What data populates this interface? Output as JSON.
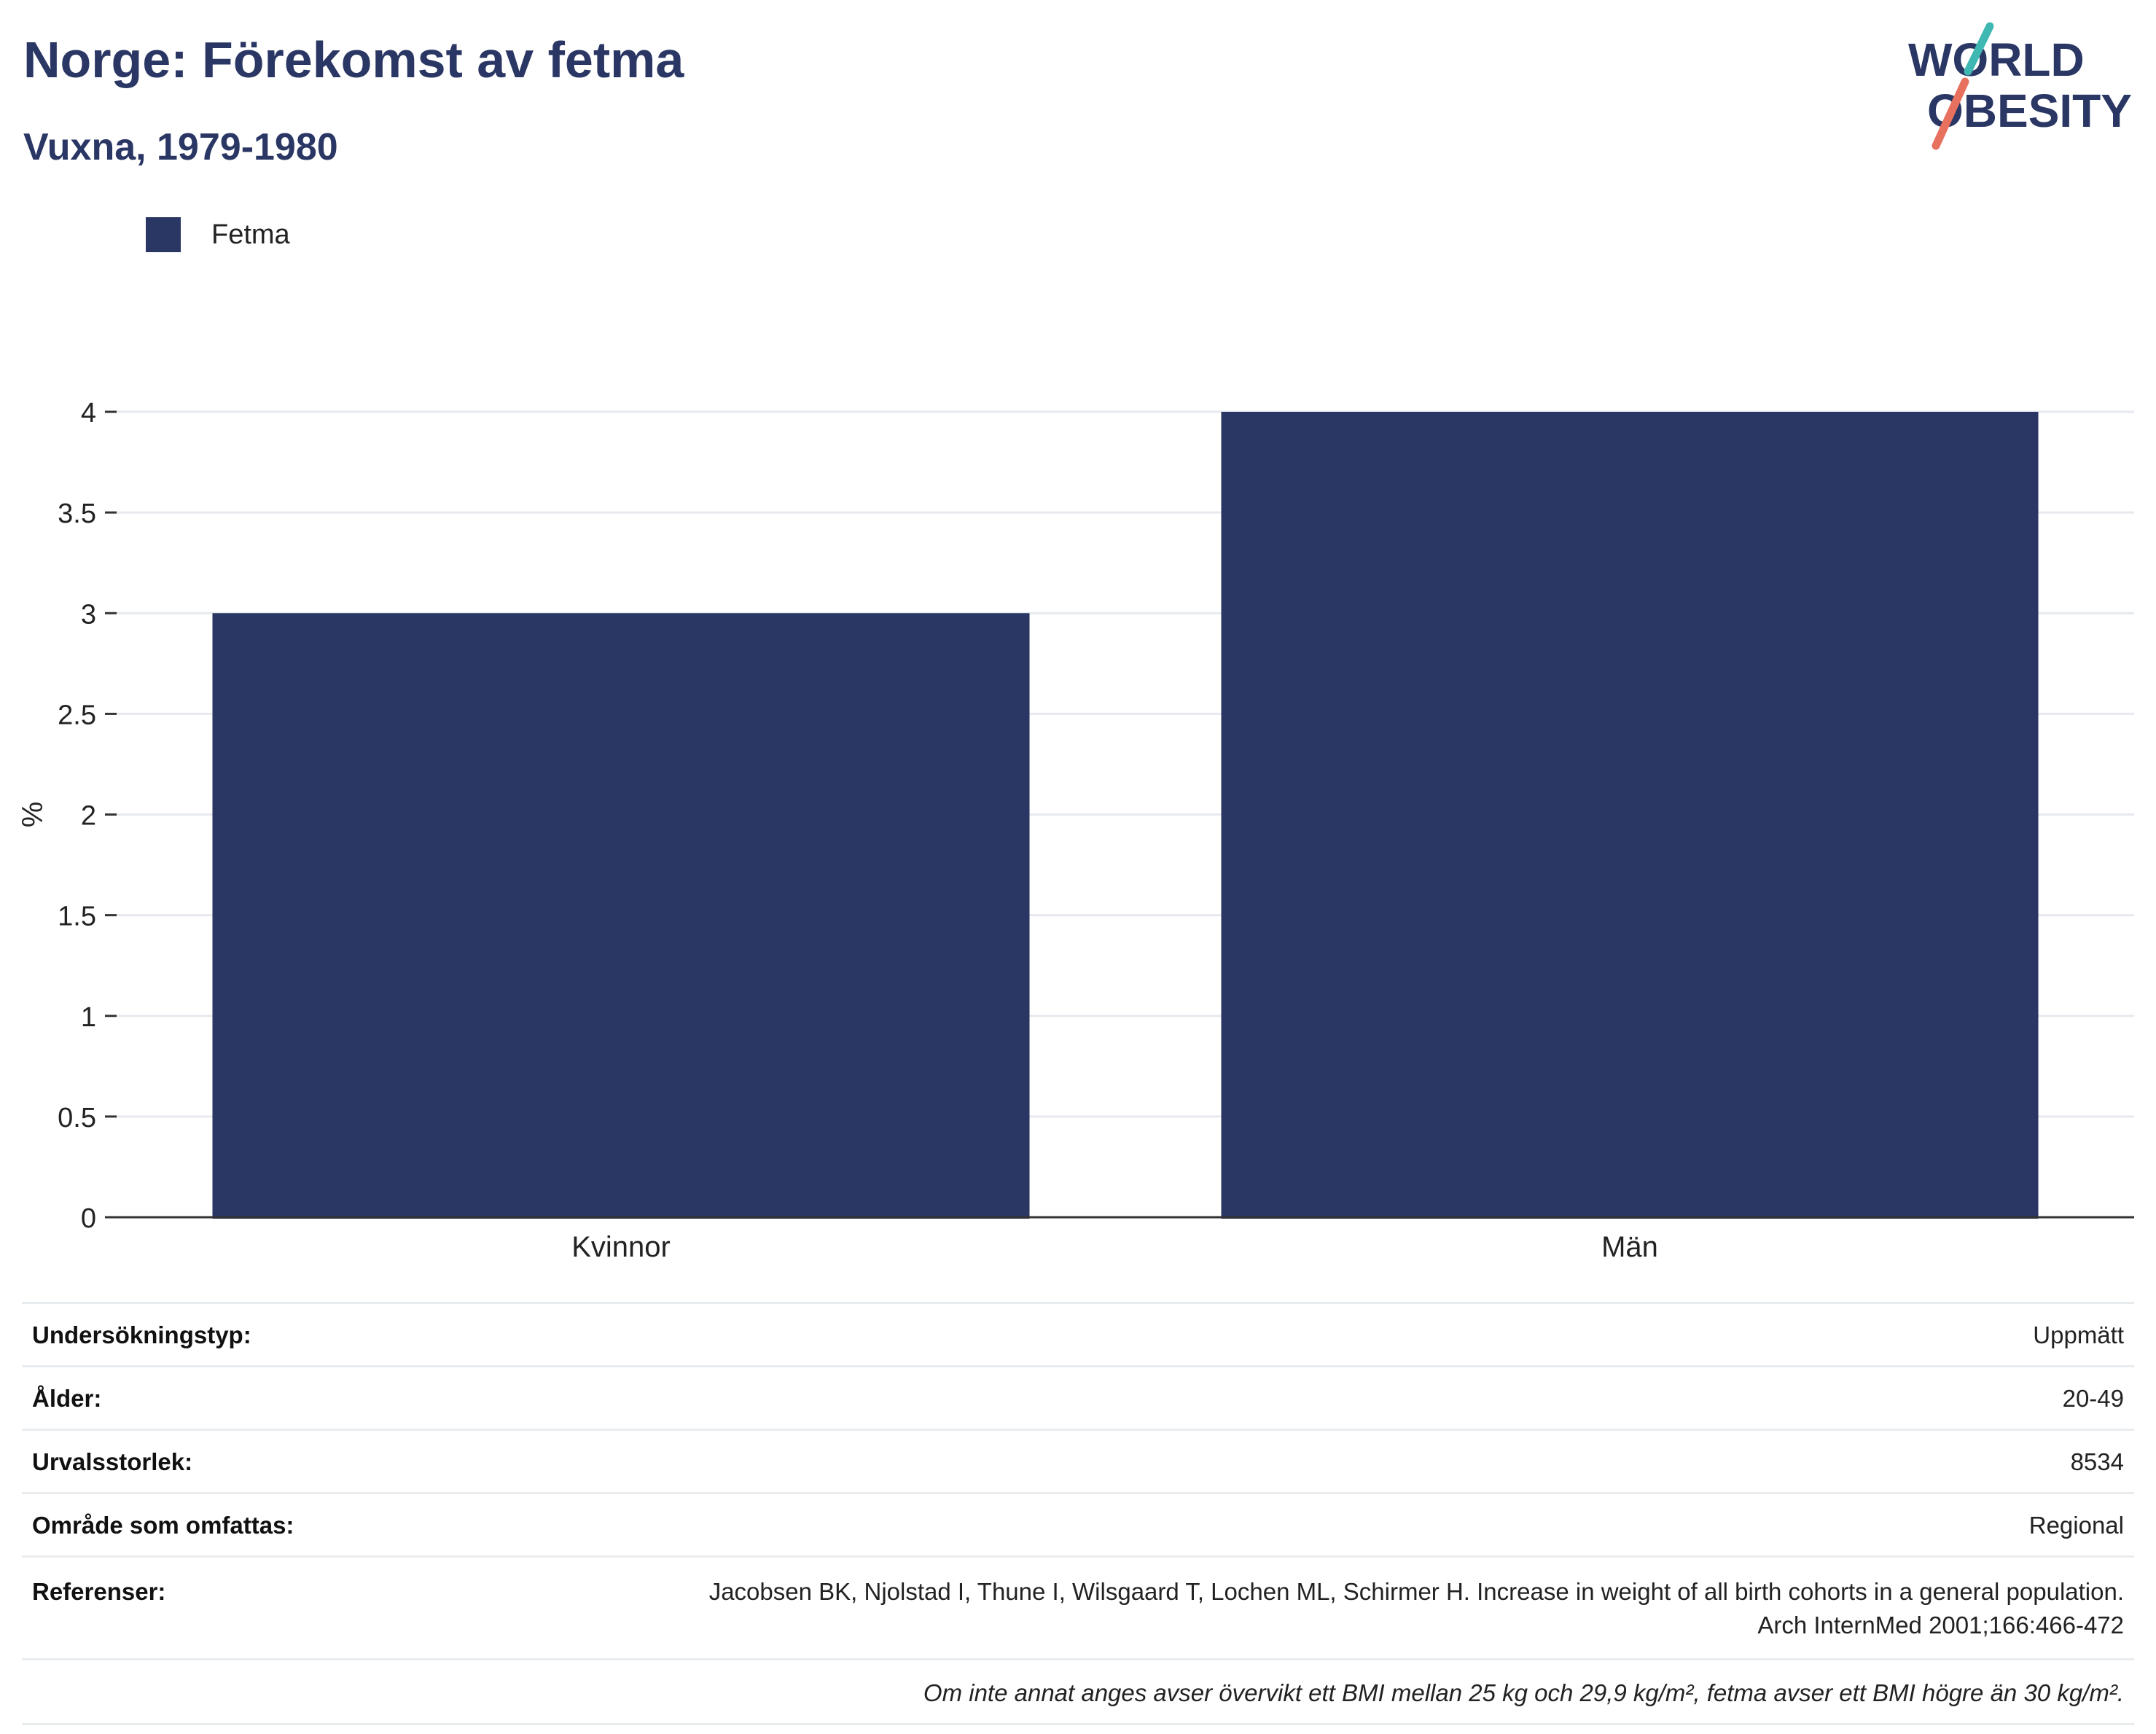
{
  "header": {
    "title": "Norge: Förekomst av fetma",
    "subtitle": "Vuxna, 1979-1980"
  },
  "logo": {
    "line1": "WORLD",
    "line2": "OBESITY",
    "colors": {
      "text": "#2a3764",
      "teal": "#3fb8b3",
      "coral": "#e8705f"
    }
  },
  "legend": {
    "label": "Fetma",
    "color": "#2a3764"
  },
  "chart_data": {
    "type": "bar",
    "categories": [
      "Kvinnor",
      "Män"
    ],
    "series": [
      {
        "name": "Fetma",
        "values": [
          3.0,
          4.0
        ],
        "color": "#2a3764"
      }
    ],
    "ylabel": "%",
    "xlabel": "",
    "ylim": [
      0,
      4
    ],
    "yticks": [
      0,
      0.5,
      1,
      1.5,
      2,
      2.5,
      3,
      3.5,
      4
    ],
    "ytick_labels": [
      "0",
      "0.5",
      "1",
      "1.5",
      "2",
      "2.5",
      "3",
      "3.5",
      "4"
    ],
    "grid": true
  },
  "info": {
    "rows": [
      {
        "label": "Undersökningstyp:",
        "value": "Uppmätt"
      },
      {
        "label": "Ålder:",
        "value": "20-49"
      },
      {
        "label": "Urvalsstorlek:",
        "value": "8534"
      },
      {
        "label": "Område som omfattas:",
        "value": "Regional"
      }
    ],
    "references": {
      "label": "Referenser:",
      "line1": "Jacobsen BK, Njolstad I, Thune I, Wilsgaard T, Lochen ML, Schirmer H. Increase in weight of all birth cohorts in a general population.",
      "line2": "Arch InternMed 2001;166:466-472"
    },
    "note": "Om inte annat anges avser övervikt ett BMI mellan 25 kg och 29,9 kg/m², fetma avser ett BMI högre än 30 kg/m²."
  }
}
